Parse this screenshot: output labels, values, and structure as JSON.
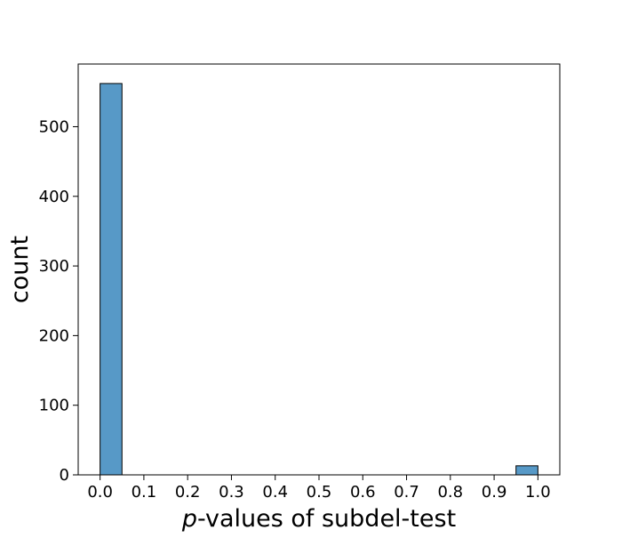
{
  "chart_data": {
    "type": "bar",
    "subtype": "histogram",
    "xlabel_italic_part": "p",
    "xlabel_rest": "-values of subdel-test",
    "ylabel": "count",
    "xlim": [
      -0.05,
      1.05
    ],
    "ylim": [
      0,
      590
    ],
    "x_ticks": [
      "0.0",
      "0.1",
      "0.2",
      "0.3",
      "0.4",
      "0.5",
      "0.6",
      "0.7",
      "0.8",
      "0.9",
      "1.0"
    ],
    "y_ticks": [
      "0",
      "100",
      "200",
      "300",
      "400",
      "500"
    ],
    "bins": [
      {
        "x0": 0.0,
        "x1": 0.05,
        "count": 562
      },
      {
        "x0": 0.05,
        "x1": 0.1,
        "count": 0
      },
      {
        "x0": 0.1,
        "x1": 0.15,
        "count": 0
      },
      {
        "x0": 0.15,
        "x1": 0.2,
        "count": 0
      },
      {
        "x0": 0.2,
        "x1": 0.25,
        "count": 0
      },
      {
        "x0": 0.25,
        "x1": 0.3,
        "count": 0
      },
      {
        "x0": 0.3,
        "x1": 0.35,
        "count": 0
      },
      {
        "x0": 0.35,
        "x1": 0.4,
        "count": 0
      },
      {
        "x0": 0.4,
        "x1": 0.45,
        "count": 0
      },
      {
        "x0": 0.45,
        "x1": 0.5,
        "count": 0
      },
      {
        "x0": 0.5,
        "x1": 0.55,
        "count": 0
      },
      {
        "x0": 0.55,
        "x1": 0.6,
        "count": 0
      },
      {
        "x0": 0.6,
        "x1": 0.65,
        "count": 0
      },
      {
        "x0": 0.65,
        "x1": 0.7,
        "count": 0
      },
      {
        "x0": 0.7,
        "x1": 0.75,
        "count": 0
      },
      {
        "x0": 0.75,
        "x1": 0.8,
        "count": 0
      },
      {
        "x0": 0.8,
        "x1": 0.85,
        "count": 0
      },
      {
        "x0": 0.85,
        "x1": 0.9,
        "count": 0
      },
      {
        "x0": 0.9,
        "x1": 0.95,
        "count": 0
      },
      {
        "x0": 0.95,
        "x1": 1.0,
        "count": 13
      }
    ],
    "grid": false,
    "legend": "none",
    "bar_color": "#5799c7",
    "edge_color": "#000000"
  }
}
